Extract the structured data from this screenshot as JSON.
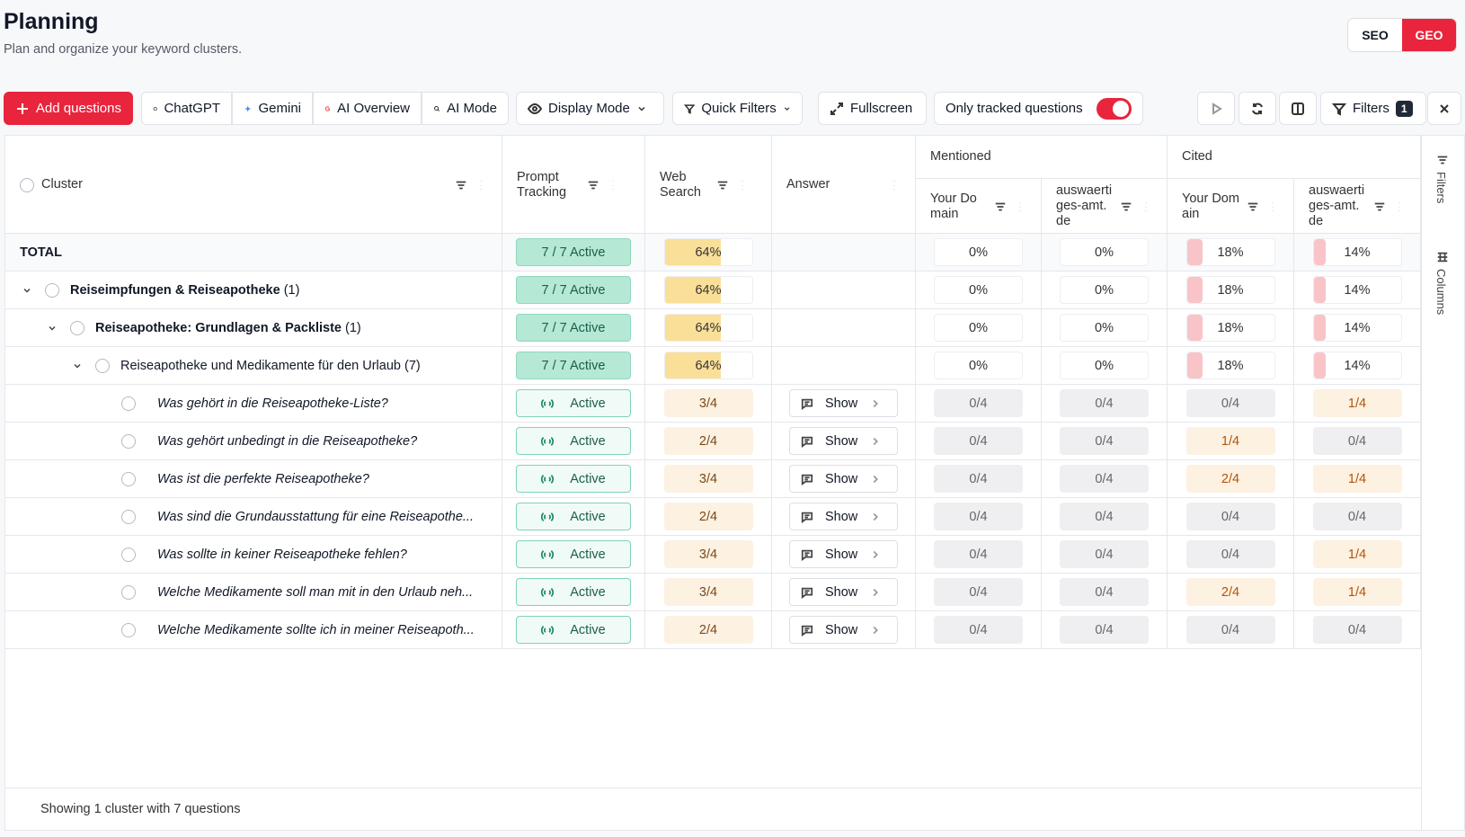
{
  "header": {
    "title": "Planning",
    "subtitle": "Plan and organize your keyword clusters."
  },
  "mode_toggle": [
    "SEO",
    "GEO"
  ],
  "toolbar": {
    "add_questions": "Add questions",
    "engines": [
      "ChatGPT",
      "Gemini",
      "AI Overview",
      "AI Mode"
    ],
    "display_mode": "Display Mode",
    "quick_filters": "Quick Filters",
    "fullscreen": "Fullscreen",
    "tracked_toggle": "Only tracked questions",
    "filters": "Filters",
    "filters_count": 1
  },
  "table": {
    "columns": {
      "cluster": "Cluster",
      "prompt_tracking": "Prompt Tracking",
      "web_search": "Web Search",
      "answer": "Answer",
      "mentioned": "Mentioned",
      "cited": "Cited",
      "your_domain": "Your Domain",
      "competitor": "auswaertiges-amt.de"
    },
    "total": {
      "label": "TOTAL",
      "tracking": "7 / 7 Active",
      "web_search": "64%",
      "mentioned_your": "0%",
      "mentioned_competitor": "0%",
      "cited_your": "18%",
      "cited_competitor": "14%"
    },
    "clusters": [
      {
        "label": "Reiseimpfungen & Reiseapotheke",
        "count": "(1)",
        "tracking": "7 / 7 Active",
        "web_search": "64%",
        "mentioned_your": "0%",
        "mentioned_competitor": "0%",
        "cited_your": "18%",
        "cited_competitor": "14%"
      },
      {
        "label": "Reiseapotheke: Grundlagen & Packliste",
        "count": "(1)",
        "tracking": "7 / 7 Active",
        "web_search": "64%",
        "mentioned_your": "0%",
        "mentioned_competitor": "0%",
        "cited_your": "18%",
        "cited_competitor": "14%"
      },
      {
        "label": "Reiseapotheke und Medikamente für den Urlaub",
        "count": "(7)",
        "tracking": "7 / 7 Active",
        "web_search": "64%",
        "mentioned_your": "0%",
        "mentioned_competitor": "0%",
        "cited_your": "18%",
        "cited_competitor": "14%"
      }
    ],
    "questions": [
      {
        "text": "Was gehört in die Reiseapotheke-Liste?",
        "tracking": "Active",
        "web_search": "3/4",
        "answer": "Show",
        "mentioned_your": "0/4",
        "mentioned_competitor": "0/4",
        "cited_your": "0/4",
        "cited_competitor": "1/4"
      },
      {
        "text": "Was gehört unbedingt in die Reiseapotheke?",
        "tracking": "Active",
        "web_search": "2/4",
        "answer": "Show",
        "mentioned_your": "0/4",
        "mentioned_competitor": "0/4",
        "cited_your": "1/4",
        "cited_competitor": "0/4"
      },
      {
        "text": "Was ist die perfekte Reiseapotheke?",
        "tracking": "Active",
        "web_search": "3/4",
        "answer": "Show",
        "mentioned_your": "0/4",
        "mentioned_competitor": "0/4",
        "cited_your": "2/4",
        "cited_competitor": "1/4"
      },
      {
        "text": "Was sind die Grundausstattung für eine Reiseapothe...",
        "tracking": "Active",
        "web_search": "2/4",
        "answer": "Show",
        "mentioned_your": "0/4",
        "mentioned_competitor": "0/4",
        "cited_your": "0/4",
        "cited_competitor": "0/4"
      },
      {
        "text": "Was sollte in keiner Reiseapotheke fehlen?",
        "tracking": "Active",
        "web_search": "3/4",
        "answer": "Show",
        "mentioned_your": "0/4",
        "mentioned_competitor": "0/4",
        "cited_your": "0/4",
        "cited_competitor": "1/4"
      },
      {
        "text": "Welche Medikamente soll man mit in den Urlaub neh...",
        "tracking": "Active",
        "web_search": "3/4",
        "answer": "Show",
        "mentioned_your": "0/4",
        "mentioned_competitor": "0/4",
        "cited_your": "2/4",
        "cited_competitor": "1/4"
      },
      {
        "text": "Welche Medikamente sollte ich in meiner Reiseapoth...",
        "tracking": "Active",
        "web_search": "2/4",
        "answer": "Show",
        "mentioned_your": "0/4",
        "mentioned_competitor": "0/4",
        "cited_your": "0/4",
        "cited_competitor": "0/4"
      }
    ],
    "footer": "Showing 1 cluster with 7 questions"
  },
  "side_panel": [
    "Filters",
    "Columns"
  ]
}
